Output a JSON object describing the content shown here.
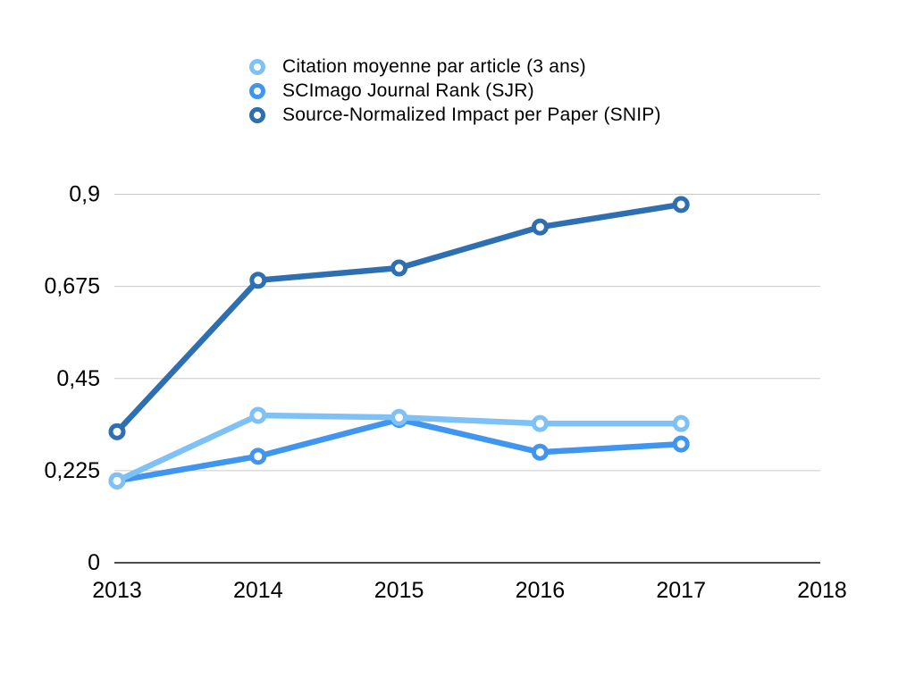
{
  "chart_data": {
    "type": "line",
    "x_categories": [
      "2013",
      "2014",
      "2015",
      "2016",
      "2017",
      "2018"
    ],
    "x_data": [
      2013,
      2014,
      2015,
      2016,
      2017
    ],
    "ylim": [
      0,
      0.9
    ],
    "yticks": [
      0,
      0.225,
      0.45,
      0.675,
      0.9
    ],
    "ytick_labels": [
      "0",
      "0,225",
      "0,45",
      "0,675",
      "0,9"
    ],
    "grid": true,
    "legend_position": "top",
    "series": [
      {
        "name": "Citation moyenne par article (3 ans)",
        "color": "#7DC1F6",
        "values": [
          0.2,
          0.36,
          0.355,
          0.34,
          0.34
        ]
      },
      {
        "name": "SCImago Journal Rank (SJR)",
        "color": "#4095F0",
        "values": [
          0.2,
          0.26,
          0.35,
          0.27,
          0.29
        ]
      },
      {
        "name": "Source-Normalized Impact per Paper (SNIP)",
        "color": "#2E6FB2",
        "values": [
          0.32,
          0.69,
          0.72,
          0.82,
          0.875
        ]
      }
    ],
    "draw_order": [
      1,
      0,
      2
    ],
    "colors": {
      "gridline": "#c9c9c9",
      "axis": "#111111",
      "text": "#000000",
      "background": "#ffffff"
    }
  }
}
